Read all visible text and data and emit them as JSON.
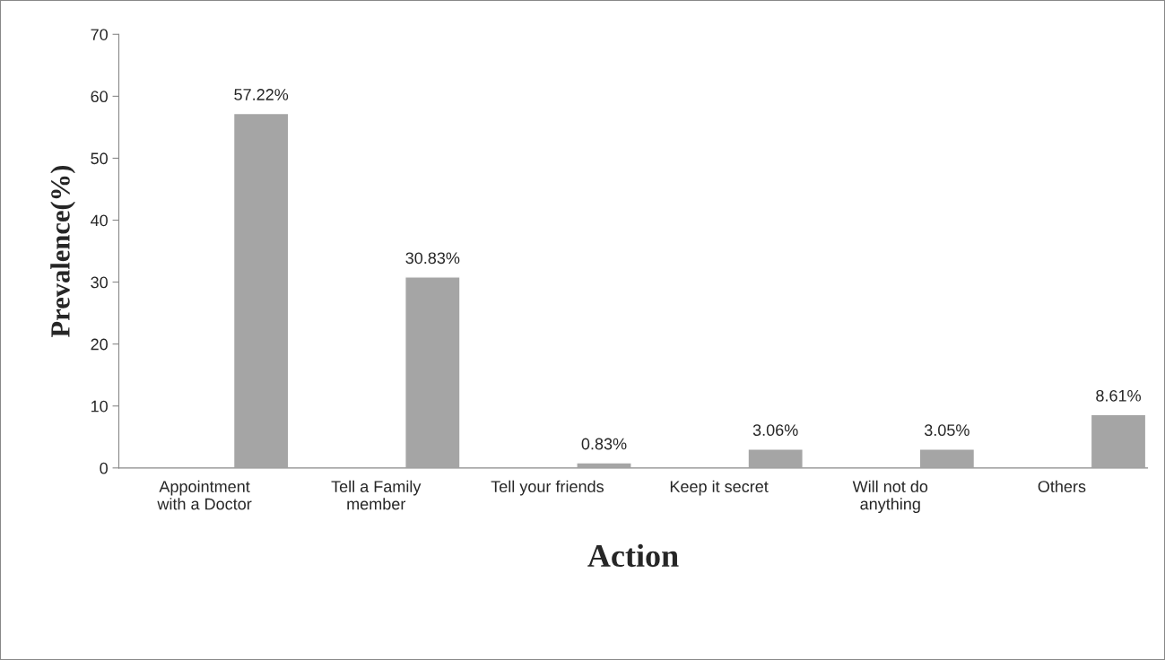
{
  "chart_data": {
    "type": "bar",
    "categories": [
      "Appointment\nwith a Doctor",
      "Tell a Family\nmember",
      "Tell your friends",
      "Keep it secret",
      "Will not do\nanything",
      "Others"
    ],
    "values": [
      57.22,
      30.83,
      0.83,
      3.06,
      3.05,
      8.61
    ],
    "value_labels": [
      "57.22%",
      "30.83%",
      "0.83%",
      "3.06%",
      "3.05%",
      "8.61%"
    ],
    "color": "#a5a5a5",
    "xlabel": "Action",
    "ylabel": "Prevalence(%)",
    "ylim": [
      0,
      70
    ],
    "yticks": [
      0,
      10,
      20,
      30,
      40,
      50,
      60,
      70
    ],
    "grid": false
  }
}
